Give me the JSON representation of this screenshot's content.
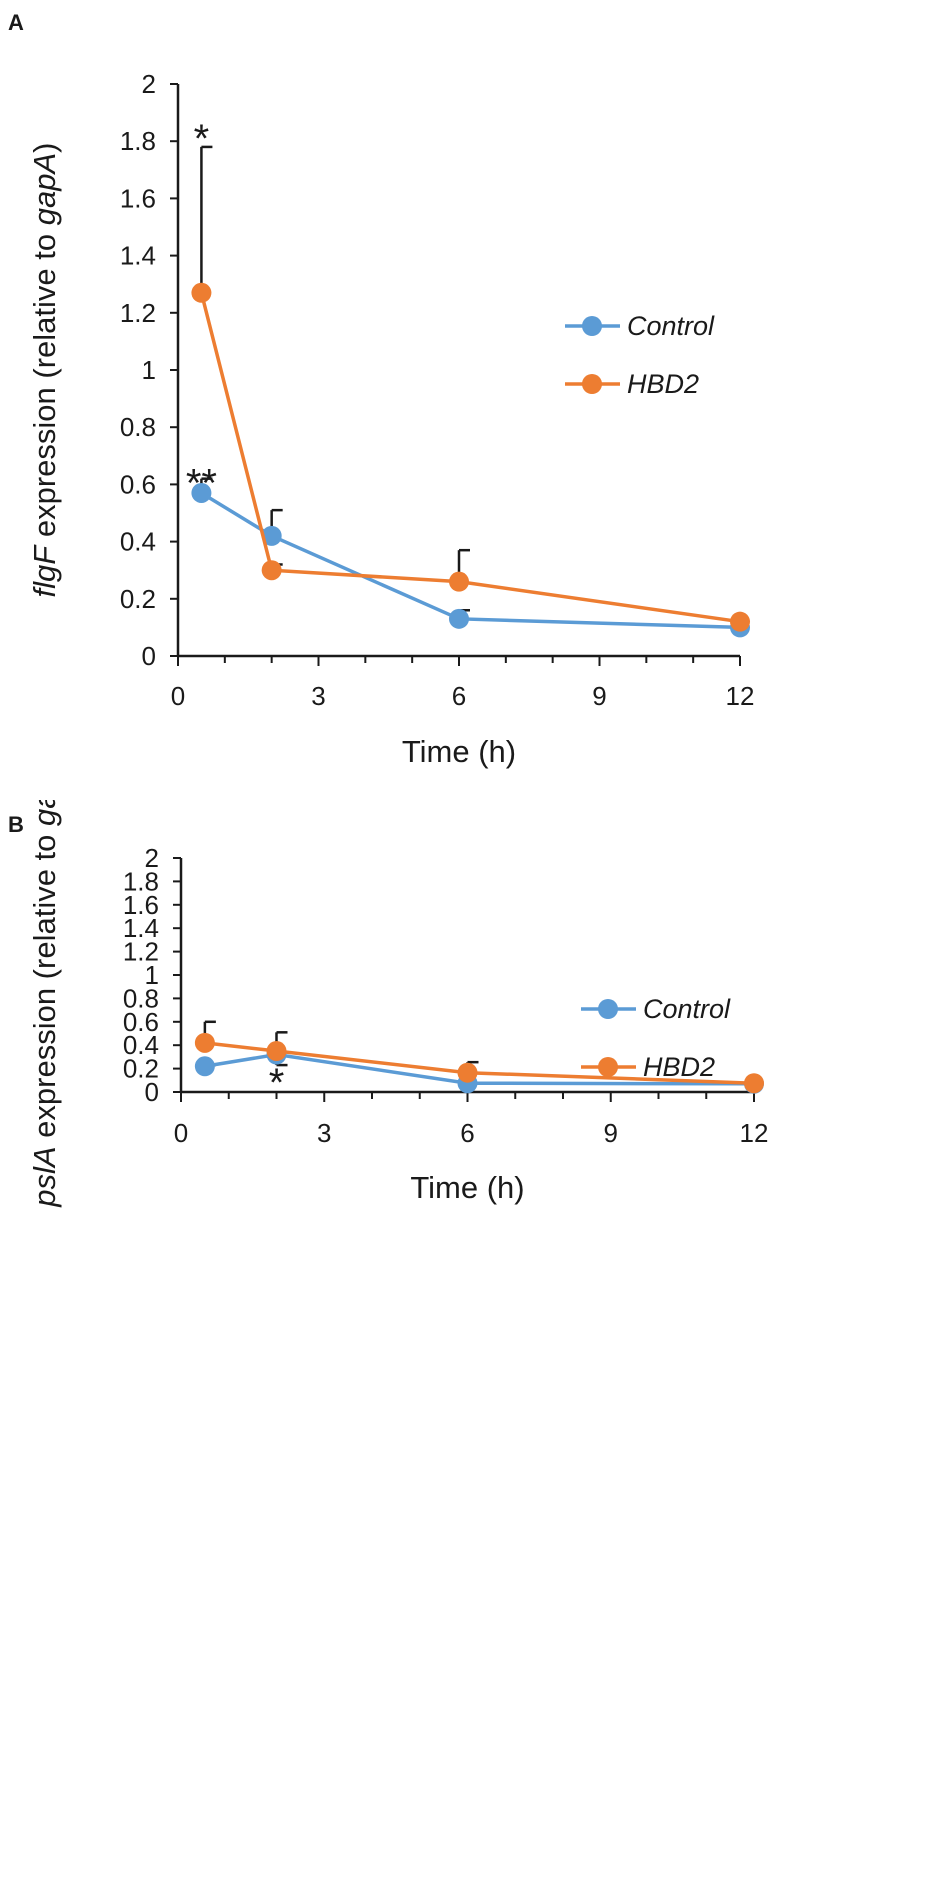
{
  "chart_data": [
    {
      "panel": "A",
      "type": "line",
      "ylabel": {
        "gene": "flgF",
        "mid": " expression (relative to ",
        "ref": "gapA",
        "end": ")"
      },
      "xlabel": "Time (h)",
      "xlim": [
        0,
        12
      ],
      "ylim": [
        0,
        2
      ],
      "xticks": [
        "0",
        "3",
        "6",
        "9",
        "12"
      ],
      "yticks": [
        "0",
        "0.2",
        "0.4",
        "0.6",
        "0.8",
        "1",
        "1.2",
        "1.4",
        "1.6",
        "1.8",
        "2"
      ],
      "x": [
        0.5,
        2,
        6,
        12
      ],
      "series": [
        {
          "name": "Control",
          "color": "#5b9bd5",
          "values": [
            0.57,
            0.42,
            0.13,
            0.1
          ],
          "errors": [
            0.05,
            0.09,
            0.03,
            0.0
          ]
        },
        {
          "name": "HBD2",
          "color": "#ed7d31",
          "values": [
            1.27,
            0.3,
            0.26,
            0.12
          ],
          "errors": [
            0.51,
            0.02,
            0.11,
            0.0
          ]
        }
      ],
      "annotations": [
        {
          "text": "*",
          "x": 0.5,
          "y": 1.84
        },
        {
          "text": "**",
          "x": 0.5,
          "y": 0.635
        }
      ],
      "legend": "right"
    },
    {
      "panel": "B",
      "type": "line",
      "ylabel": {
        "gene": "pslA",
        "mid": " expression (relative to ",
        "ref": "gapA",
        "end": ")"
      },
      "xlabel": "Time (h)",
      "xlim": [
        0,
        12
      ],
      "ylim": [
        0,
        2
      ],
      "xticks": [
        "0",
        "3",
        "6",
        "9",
        "12"
      ],
      "yticks": [
        "0",
        "0.2",
        "0.4",
        "0.6",
        "0.8",
        "1",
        "1.2",
        "1.4",
        "1.6",
        "1.8",
        "2"
      ],
      "x": [
        0.5,
        2,
        6,
        12
      ],
      "series": [
        {
          "name": "Control",
          "color": "#5b9bd5",
          "values": [
            0.22,
            0.32,
            0.075,
            0.07
          ],
          "errors": [
            0.01,
            0.0,
            0.0,
            0.0
          ],
          "errors_down": [
            0.0,
            0.09,
            0.0,
            0.0
          ]
        },
        {
          "name": "HBD2",
          "color": "#ed7d31",
          "values": [
            0.42,
            0.35,
            0.165,
            0.075
          ],
          "errors": [
            0.18,
            0.16,
            0.09,
            0.0
          ]
        }
      ],
      "annotations": [
        {
          "text": "*",
          "x": 2,
          "y": 0.155
        }
      ],
      "legend": "right"
    }
  ]
}
